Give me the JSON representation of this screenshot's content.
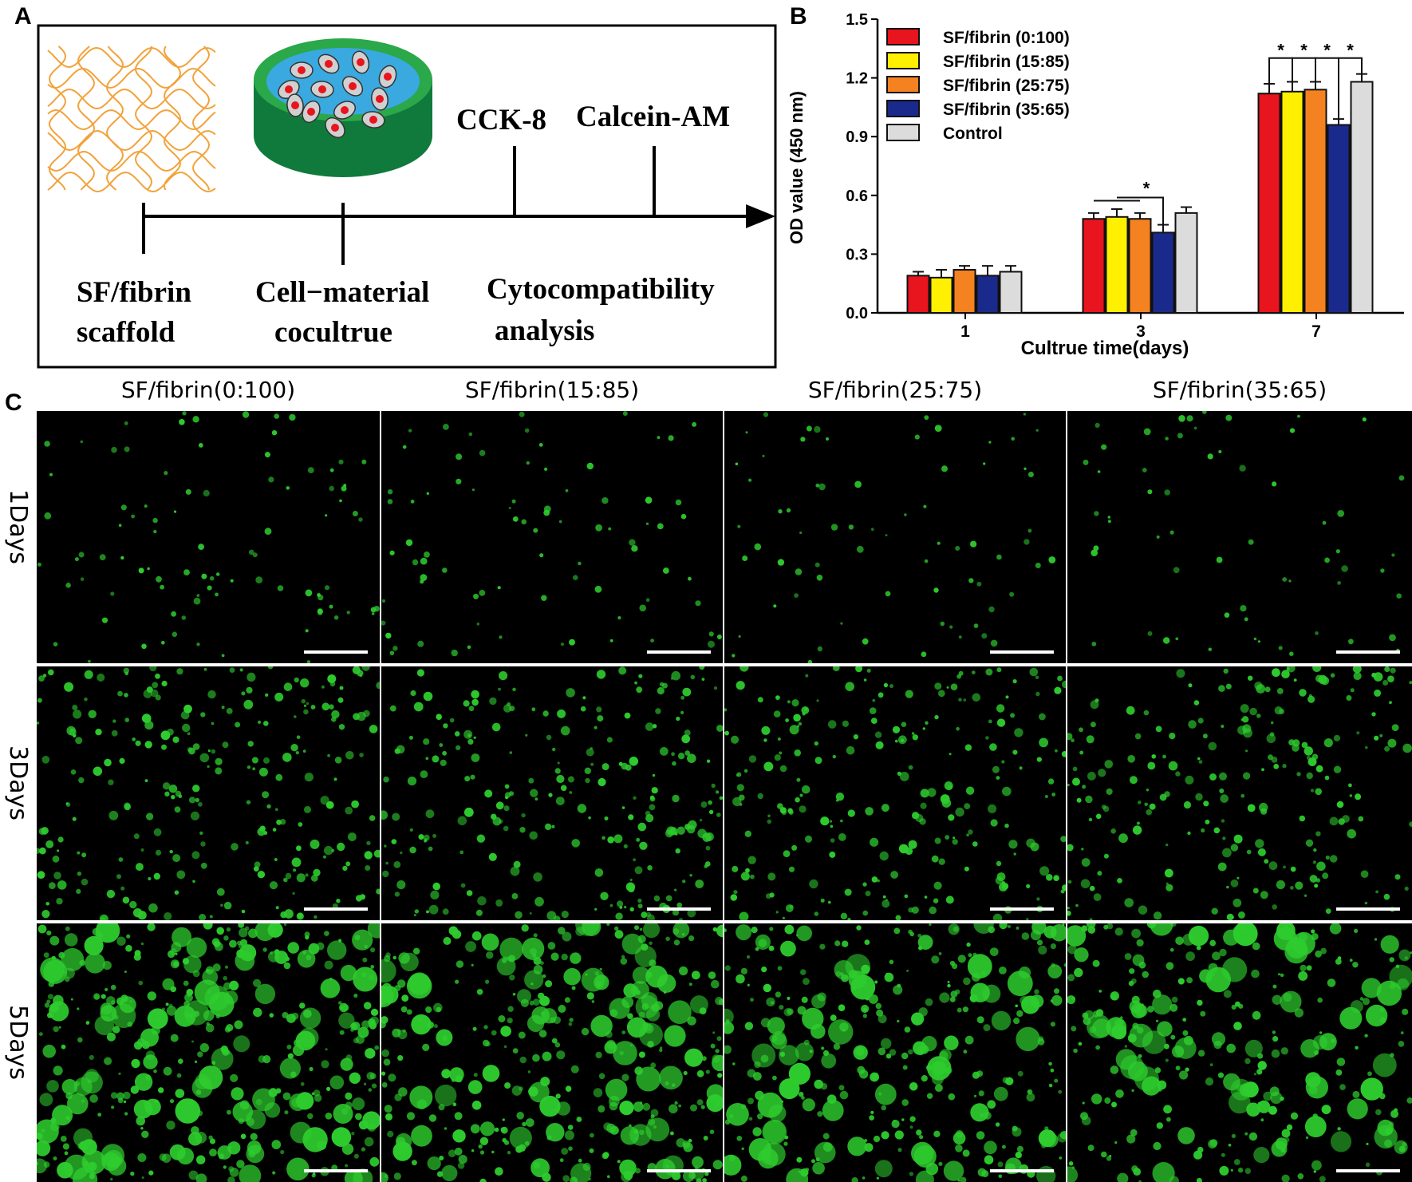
{
  "panels": {
    "a": "A",
    "b": "B",
    "c": "C"
  },
  "schematic": {
    "scaffold_label_1": "SF/fibrin",
    "scaffold_label_2": "scaffold",
    "coculture_label_1": "Cell−material",
    "coculture_label_2": "cocultrue",
    "cck8": "CCK-8",
    "calcein": "Calcein-AM",
    "analysis_label_1": "Cytocompatibility",
    "analysis_label_2": "analysis"
  },
  "chart_data": {
    "type": "bar",
    "categories": [
      "1",
      "3",
      "7"
    ],
    "series": [
      {
        "name": "SF/fibrin  (0:100)",
        "color": "#e8141e",
        "values": [
          0.19,
          0.48,
          1.12
        ],
        "errors": [
          0.02,
          0.03,
          0.05
        ]
      },
      {
        "name": "SF/fibrin  (15:85)",
        "color": "#ffef00",
        "values": [
          0.18,
          0.49,
          1.13
        ],
        "errors": [
          0.04,
          0.04,
          0.05
        ]
      },
      {
        "name": "SF/fibrin  (25:75)",
        "color": "#f58220",
        "values": [
          0.22,
          0.48,
          1.14
        ],
        "errors": [
          0.02,
          0.03,
          0.04
        ]
      },
      {
        "name": "SF/fibrin  (35:65)",
        "color": "#1a2a8c",
        "values": [
          0.19,
          0.41,
          0.96
        ],
        "errors": [
          0.05,
          0.04,
          0.03
        ]
      },
      {
        "name": "Control",
        "color": "#dcdcdc",
        "values": [
          0.21,
          0.51,
          1.18
        ],
        "errors": [
          0.03,
          0.03,
          0.04
        ]
      }
    ],
    "ylabel": "OD value (450 nm)",
    "xlabel": "Cultrue time(days)",
    "ylim": [
      0,
      1.5
    ],
    "yticks": [
      "0.0",
      "0.3",
      "0.6",
      "0.9",
      "1.2",
      "1.5"
    ],
    "significance": "*",
    "legend": "top-left",
    "grid": false
  },
  "micrographs": {
    "columns": [
      "SF/fibrin(0:100)",
      "SF/fibrin(15:85)",
      "SF/fibrin(25:75)",
      "SF/fibrin(35:65)"
    ],
    "rows": [
      "1Days",
      "3Days",
      "5Days"
    ],
    "stain_color": "#2ecc2e"
  }
}
